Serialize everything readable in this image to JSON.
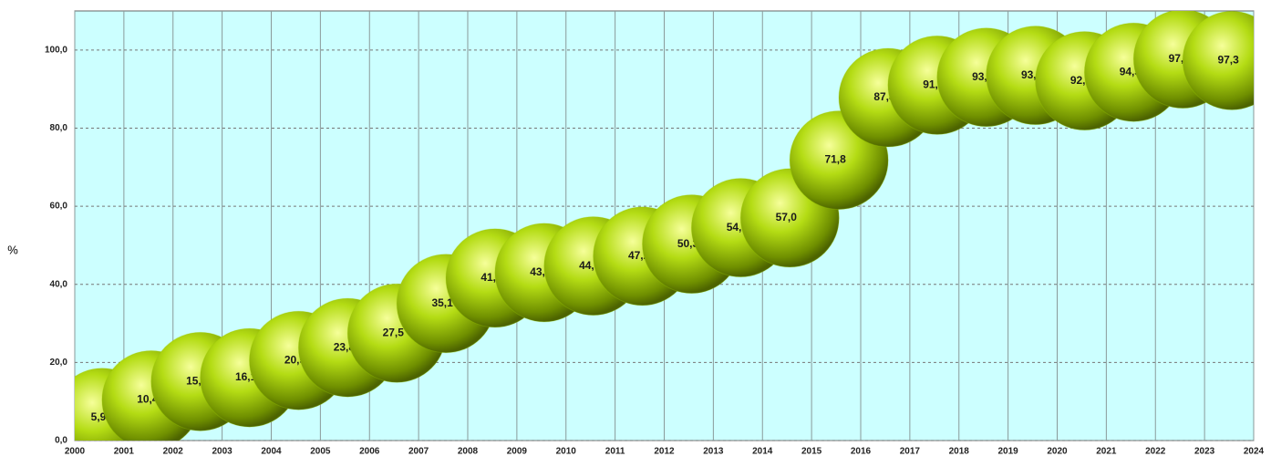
{
  "chart_data": {
    "type": "scatter",
    "y_label": "%",
    "x": [
      2000,
      2001,
      2002,
      2003,
      2004,
      2005,
      2006,
      2007,
      2008,
      2009,
      2010,
      2011,
      2012,
      2013,
      2014,
      2015,
      2016,
      2017,
      2018,
      2019,
      2020,
      2021,
      2022,
      2023
    ],
    "values": [
      5.9,
      10.4,
      15.1,
      16.1,
      20.5,
      23.8,
      27.5,
      35.1,
      41.6,
      43.0,
      44.7,
      47.2,
      50.3,
      54.5,
      57.0,
      71.8,
      87.8,
      91.0,
      93.0,
      93.5,
      92.1,
      94.3,
      97.7,
      97.3
    ],
    "value_labels": [
      "5,9",
      "10,4",
      "15,1",
      "16,1",
      "20,5",
      "23,8",
      "27,5",
      "35,1",
      "41,6",
      "43,0",
      "44,7",
      "47,2",
      "50,3",
      "54,5",
      "57,0",
      "71,8",
      "87,8",
      "91,0",
      "93,0",
      "93,5",
      "92,1",
      "94,3",
      "97,7",
      "97,3"
    ],
    "color": "#9acd00",
    "xlim": [
      2000,
      2024
    ],
    "xticks": [
      2000,
      2001,
      2002,
      2003,
      2004,
      2005,
      2006,
      2007,
      2008,
      2009,
      2010,
      2011,
      2012,
      2013,
      2014,
      2015,
      2016,
      2017,
      2018,
      2019,
      2020,
      2021,
      2022,
      2023,
      2024
    ],
    "ylim": [
      0,
      110
    ],
    "yticks": [
      {
        "value": 0,
        "label": "0,0"
      },
      {
        "value": 20,
        "label": "20,0"
      },
      {
        "value": 40,
        "label": "40,0"
      },
      {
        "value": 60,
        "label": "60,0"
      },
      {
        "value": 80,
        "label": "80,0"
      },
      {
        "value": 100,
        "label": "100,0"
      }
    ],
    "grid": true
  }
}
